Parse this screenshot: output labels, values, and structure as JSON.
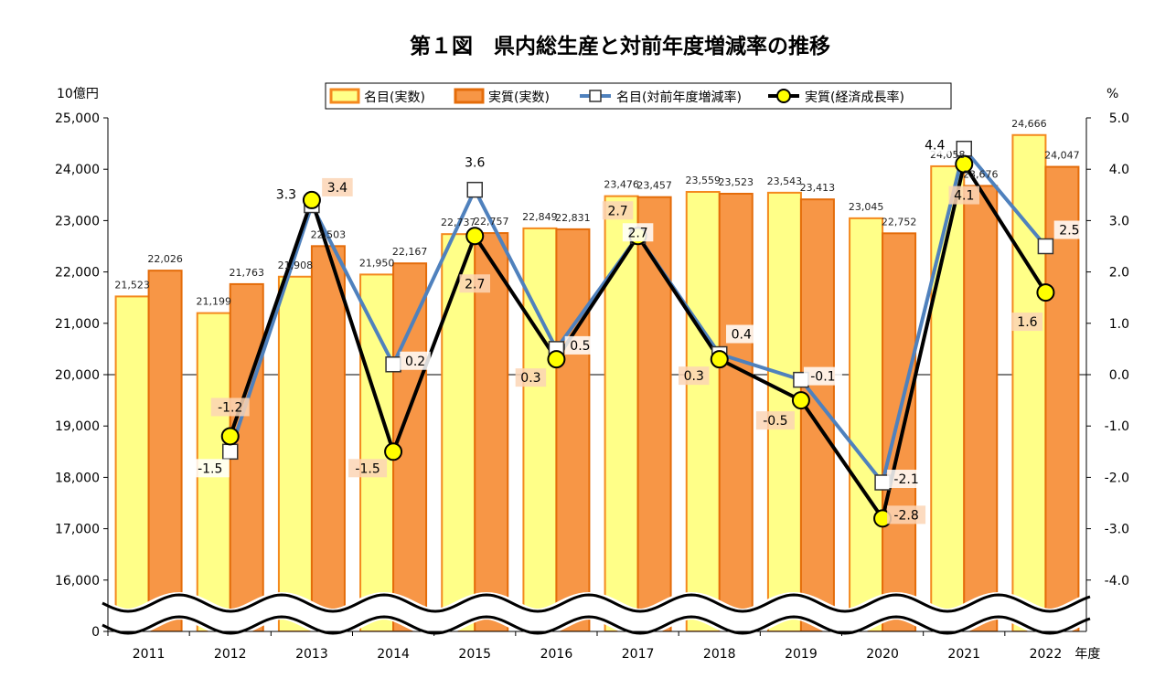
{
  "chart_data": {
    "type": "bar",
    "title": "第１図　県内総生産と対前年度増減率の推移",
    "left_unit": "10億円",
    "right_unit": "%",
    "x_suffix": "年度",
    "categories": [
      "2011",
      "2012",
      "2013",
      "2014",
      "2015",
      "2016",
      "2017",
      "2018",
      "2019",
      "2020",
      "2021",
      "2022"
    ],
    "left_axis": {
      "ticks": [
        "25,000",
        "24,000",
        "23,000",
        "22,000",
        "21,000",
        "20,000",
        "19,000",
        "18,000",
        "17,000",
        "16,000",
        "0"
      ],
      "ylim": [
        16000,
        25000
      ],
      "axis_break": true
    },
    "right_axis": {
      "ticks": [
        "5.0",
        "4.0",
        "3.0",
        "2.0",
        "1.0",
        "0.0",
        "-1.0",
        "-2.0",
        "-3.0",
        "-4.0"
      ],
      "ylim": [
        -4.0,
        5.0
      ]
    },
    "bar_series": [
      {
        "name": "名目(実数)",
        "color": "#ffff88",
        "border": "#f4891e",
        "values": [
          21523,
          21199,
          21908,
          21950,
          22737,
          22849,
          23476,
          23559,
          23543,
          23045,
          24058,
          24666
        ],
        "labels": [
          "21,523",
          "21,199",
          "21,908",
          "21,950",
          "22,737",
          "22,849",
          "23,476",
          "23,559",
          "23,543",
          "23,045",
          "24,058",
          "24,666"
        ]
      },
      {
        "name": "実質(実数)",
        "color": "#f79646",
        "border": "#e46c0a",
        "values": [
          22026,
          21763,
          22503,
          22167,
          22757,
          22831,
          23457,
          23523,
          23413,
          22752,
          23676,
          24047
        ],
        "labels": [
          "22,026",
          "21,763",
          "22,503",
          "22,167",
          "22,757",
          "22,831",
          "23,457",
          "23,523",
          "23,413",
          "22,752",
          "23,676",
          "24,047"
        ]
      }
    ],
    "line_series": [
      {
        "name": "名目(対前年度増減率)",
        "color": "#4f81bd",
        "marker": "square",
        "x": [
          "2012",
          "2013",
          "2014",
          "2015",
          "2016",
          "2017",
          "2018",
          "2019",
          "2020",
          "2021",
          "2022"
        ],
        "values": [
          -1.5,
          3.3,
          0.2,
          3.6,
          0.5,
          2.7,
          0.4,
          -0.1,
          -2.1,
          4.4,
          2.5
        ],
        "labels": [
          "-1.5",
          "3.3",
          "0.2",
          "3.6",
          "0.5",
          "2.7",
          "0.4",
          "-0.1",
          "-2.1",
          "4.4",
          "2.5"
        ]
      },
      {
        "name": "実質(経済成長率)",
        "color": "#000000",
        "marker": "circle",
        "x": [
          "2012",
          "2013",
          "2014",
          "2015",
          "2016",
          "2017",
          "2018",
          "2019",
          "2020",
          "2021",
          "2022"
        ],
        "values": [
          -1.2,
          3.4,
          -1.5,
          2.7,
          0.3,
          2.7,
          0.3,
          -0.5,
          -2.8,
          4.1,
          1.6
        ],
        "labels": [
          "-1.2",
          "3.4",
          "-1.5",
          "2.7",
          "0.3",
          "2.7",
          "0.3",
          "-0.5",
          "-2.8",
          "4.1",
          "1.6"
        ]
      }
    ],
    "legend_position": "top"
  }
}
